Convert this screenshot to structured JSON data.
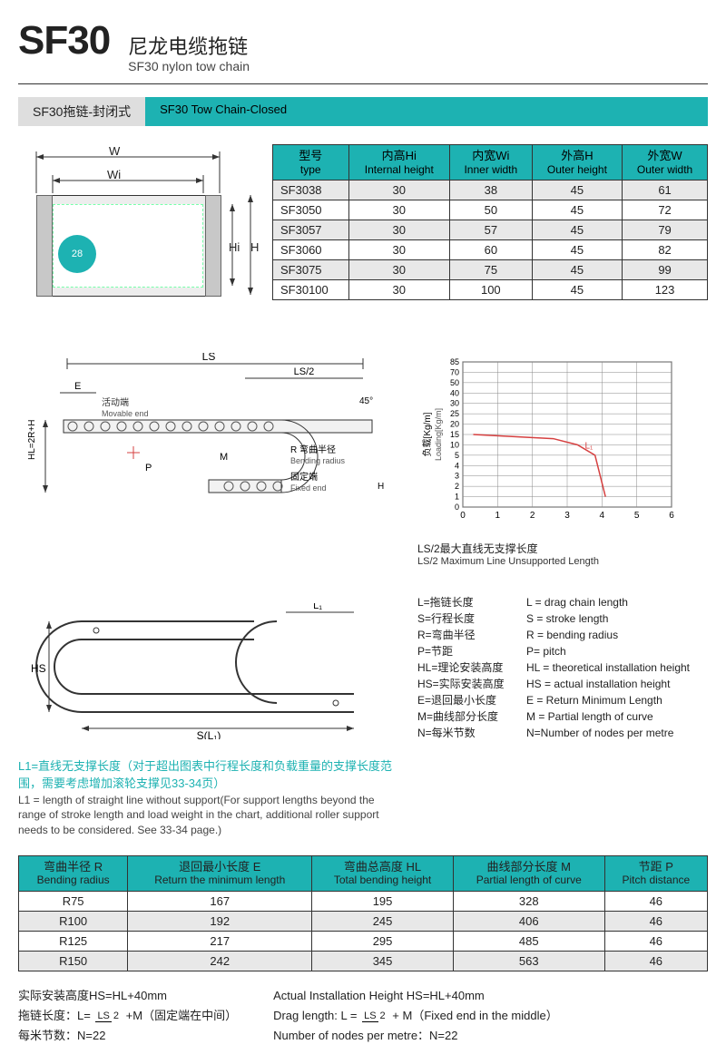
{
  "header": {
    "model": "SF30",
    "title_cn": "尼龙电缆拖链",
    "title_en": "SF30 nylon tow chain"
  },
  "section": {
    "grey": "SF30拖链-封闭式",
    "teal": "SF30 Tow Chain-Closed"
  },
  "cross_diagram": {
    "labels": {
      "W": "W",
      "Wi": "Wi",
      "Hi": "Hi",
      "H": "H"
    },
    "circle_text": "28"
  },
  "table1": {
    "columns": [
      {
        "cn": "型号",
        "en": "type"
      },
      {
        "cn": "内高Hi",
        "en": "Internal height"
      },
      {
        "cn": "内宽Wi",
        "en": "Inner width"
      },
      {
        "cn": "外高H",
        "en": "Outer height"
      },
      {
        "cn": "外宽W",
        "en": "Outer width"
      }
    ],
    "rows": [
      [
        "SF3038",
        "30",
        "38",
        "45",
        "61"
      ],
      [
        "SF3050",
        "30",
        "50",
        "45",
        "72"
      ],
      [
        "SF3057",
        "30",
        "57",
        "45",
        "79"
      ],
      [
        "SF3060",
        "30",
        "60",
        "45",
        "82"
      ],
      [
        "SF3075",
        "30",
        "75",
        "45",
        "99"
      ],
      [
        "SF30100",
        "30",
        "100",
        "45",
        "123"
      ]
    ]
  },
  "side_diagram": {
    "labels": {
      "LS": "LS",
      "LS2": "LS/2",
      "E": "E",
      "P": "P",
      "M": "M",
      "R_cn": "R 弯曲半径",
      "R_en": "Bending radius",
      "movable_cn": "活动端",
      "movable_en": "Movable end",
      "fixed_cn": "固定端",
      "fixed_en": "Fixed end",
      "HL": "HL=2R+H",
      "H": "H",
      "fortyfive": "45°"
    }
  },
  "lower_diagram": {
    "labels": {
      "HS": "HS",
      "SL1": "S(L₁)",
      "L1": "L₁"
    }
  },
  "chart": {
    "type": "line",
    "title_cn": "LS/2最大直线无支撑长度",
    "title_en": "LS/2 Maximum Line Unsupported Length",
    "ylabel_cn": "负载[Kg/m]",
    "ylabel_en": "Loading[Kg/m]",
    "xlim": [
      0,
      6
    ],
    "xstep": 1,
    "ylim": [
      0,
      85
    ],
    "yticks": [
      0,
      1,
      2,
      3,
      4,
      5,
      10,
      15,
      20,
      25,
      30,
      40,
      50,
      70,
      85
    ],
    "series": [
      {
        "color": "#d64040",
        "points": [
          [
            0.3,
            15
          ],
          [
            2.6,
            13
          ],
          [
            3.3,
            10
          ],
          [
            3.8,
            5
          ],
          [
            4.1,
            1
          ]
        ],
        "label": "L₁"
      }
    ],
    "grid_color": "#888",
    "bg": "#fff"
  },
  "legend": {
    "rows": [
      {
        "l": "L=拖链长度",
        "r": "L = drag chain length"
      },
      {
        "l": "S=行程长度",
        "r": "S = stroke length"
      },
      {
        "l": "R=弯曲半径",
        "r": "R = bending radius"
      },
      {
        "l": "P=节距",
        "r": "P= pitch"
      },
      {
        "l": "HL=理论安装高度",
        "r": "HL = theoretical installation height"
      },
      {
        "l": "HS=实际安装高度",
        "r": "HS = actual installation height"
      },
      {
        "l": "E=退回最小长度",
        "r": "E = Return Minimum Length"
      },
      {
        "l": "M=曲线部分长度",
        "r": "M = Partial length of curve"
      },
      {
        "l": "N=每米节数",
        "r": "N=Number of nodes per metre"
      }
    ]
  },
  "note": {
    "cn": "L1=直线无支撑长度（对于超出图表中行程长度和负载重量的支撑长度范围，需要考虑增加滚轮支撑见33-34页）",
    "en": "L1 = length of straight line without support(For support lengths beyond the range of stroke length and load weight in the chart, additional roller support needs to be considered. See 33-34 page.)"
  },
  "table2": {
    "columns": [
      {
        "cn": "弯曲半径 R",
        "en": "Bending radius"
      },
      {
        "cn": "退回最小长度 E",
        "en": "Return the minimum length"
      },
      {
        "cn": "弯曲总高度 HL",
        "en": "Total bending height"
      },
      {
        "cn": "曲线部分长度 M",
        "en": "Partial length of curve"
      },
      {
        "cn": "节距 P",
        "en": "Pitch distance"
      }
    ],
    "rows": [
      [
        "R75",
        "167",
        "195",
        "328",
        "46"
      ],
      [
        "R100",
        "192",
        "245",
        "406",
        "46"
      ],
      [
        "R125",
        "217",
        "295",
        "485",
        "46"
      ],
      [
        "R150",
        "242",
        "345",
        "563",
        "46"
      ]
    ]
  },
  "footer": {
    "left": [
      "实际安装高度HS=HL+40mm",
      "拖链长度：L= {LS/2} +M（固定端在中间）",
      "每米节数：N=22"
    ],
    "right": [
      "Actual Installation Height HS=HL+40mm",
      "Drag length: L = {LS/2} + M（Fixed end in the middle）",
      "Number of nodes per metre：N=22"
    ]
  },
  "colors": {
    "teal": "#1db2b2",
    "grey": "#dedede",
    "gridline": "#888",
    "series_red": "#d64040"
  }
}
